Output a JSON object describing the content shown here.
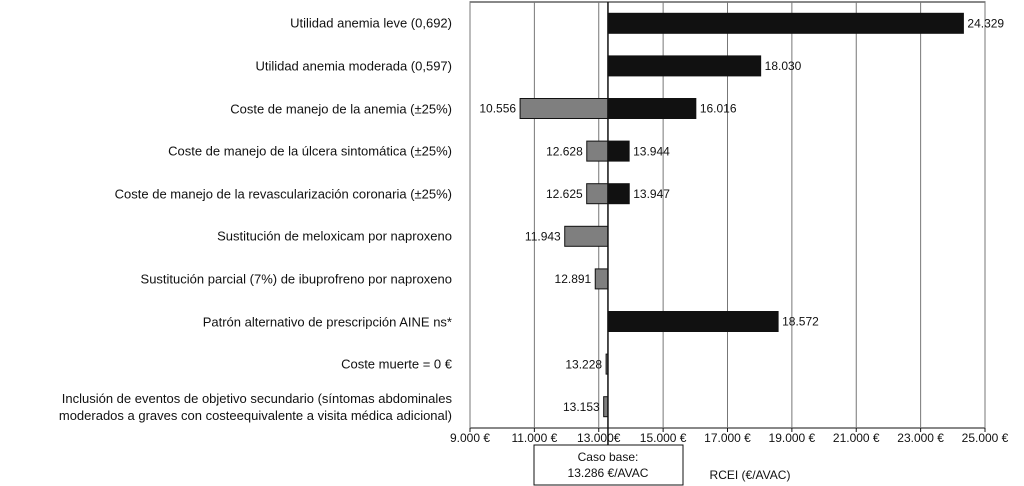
{
  "chart_data": {
    "type": "tornado",
    "categories": [
      "Utilidad anemia leve (0,692)",
      "Utilidad anemia moderada (0,597)",
      "Coste de manejo de la anemia (±25%)",
      "Coste de manejo de la úlcera sintomática (±25%)",
      "Coste de manejo de la revascularización coronaria (±25%)",
      "Sustitución de meloxicam por naproxeno",
      "Sustitución parcial (7%) de ibuprofreno por naproxeno",
      "Patrón alternativo de prescripción AINE ns*",
      "Coste muerte = 0 €",
      "Inclusión de eventos de objetivo secundario (síntomas abdominales\nmoderados  a graves con costeequivalente a visita médica adicional)"
    ],
    "series": [
      {
        "color": "#7f7f7f",
        "values": [
          null,
          null,
          10556,
          12628,
          12625,
          11943,
          12891,
          null,
          13228,
          13153
        ],
        "value_labels": [
          null,
          null,
          "10.556",
          "12.628",
          "12.625",
          "11.943",
          "12.891",
          null,
          "13.228",
          "13.153"
        ]
      },
      {
        "color": "#111111",
        "values": [
          24329,
          18030,
          16016,
          13944,
          13947,
          null,
          null,
          18572,
          null,
          null
        ],
        "value_labels": [
          "24.329",
          "18.030",
          "16.016",
          "13.944",
          "13.947",
          null,
          null,
          "18.572",
          null,
          null
        ]
      }
    ],
    "base_title": "Caso base:",
    "base": {
      "value": 13286,
      "label": "13.286 €/AVAC"
    },
    "x_label": "RCEI (€/AVAC)",
    "xlim": [
      9000,
      25000
    ],
    "xticks": [
      {
        "value": 9000,
        "label": "9.000 €"
      },
      {
        "value": 11000,
        "label": "11.000 €"
      },
      {
        "value": 13000,
        "label": "13.000€"
      },
      {
        "value": 15000,
        "label": "15.000 €"
      },
      {
        "value": 17000,
        "label": "17.000 €"
      },
      {
        "value": 19000,
        "label": "19.000 €"
      },
      {
        "value": 21000,
        "label": "21.000 €"
      },
      {
        "value": 23000,
        "label": "23.000 €"
      },
      {
        "value": 25000,
        "label": "25.000 €"
      }
    ],
    "grid": true
  }
}
